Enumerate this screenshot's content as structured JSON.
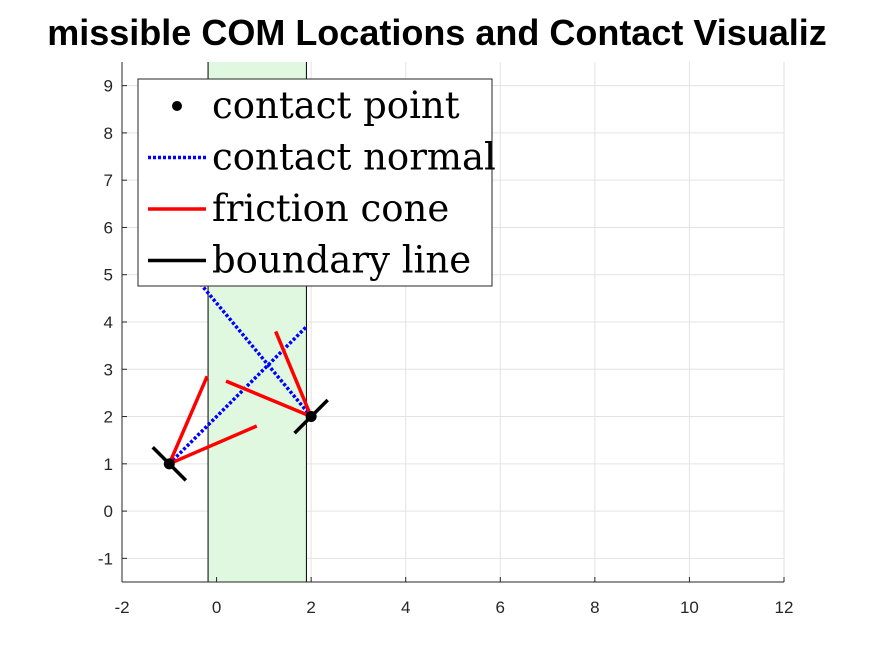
{
  "chart_data": {
    "type": "line",
    "title": "missible COM Locations and Contact Visualiz",
    "xlabel": "",
    "ylabel": "",
    "xlim": [
      -2,
      12
    ],
    "ylim": [
      -1.5,
      9.5
    ],
    "xticks": [
      -2,
      0,
      2,
      4,
      6,
      8,
      10,
      12
    ],
    "yticks": [
      -1,
      0,
      1,
      2,
      3,
      4,
      5,
      6,
      7,
      8,
      9
    ],
    "grid": true,
    "legend_position": "top-left",
    "admissible_region": {
      "x_range": [
        -0.18,
        1.9
      ],
      "fill_color": "#e0f8e0",
      "edge_color": "#000000"
    },
    "contact_points": [
      {
        "x": -1,
        "y": 1
      },
      {
        "x": 2,
        "y": 2
      }
    ],
    "contact_normals": [
      {
        "from": [
          -1,
          1
        ],
        "to": [
          1.9,
          3.9
        ]
      },
      {
        "from": [
          2,
          2
        ],
        "to": [
          -1.0,
          5.6
        ]
      }
    ],
    "friction_cones": [
      {
        "apex": [
          -1,
          1
        ],
        "edges": [
          [
            -0.2,
            2.85
          ],
          [
            0.85,
            1.8
          ]
        ]
      },
      {
        "apex": [
          2,
          2
        ],
        "edges": [
          [
            1.25,
            3.8
          ],
          [
            0.2,
            2.75
          ]
        ]
      }
    ],
    "boundary_lines": [
      {
        "from": [
          -1.35,
          1.35
        ],
        "to": [
          -0.65,
          0.65
        ]
      },
      {
        "from": [
          1.65,
          1.65
        ],
        "to": [
          2.35,
          2.35
        ]
      }
    ],
    "colors": {
      "contact_point": "#000000",
      "contact_normal": "#0000ff",
      "friction_cone": "#ff0000",
      "boundary_line": "#000000"
    },
    "legend": [
      {
        "label": "contact point",
        "style": "dot"
      },
      {
        "label": "contact normal",
        "style": "dotted-blue"
      },
      {
        "label": "friction cone",
        "style": "red-line"
      },
      {
        "label": "boundary line",
        "style": "black-line"
      }
    ]
  }
}
